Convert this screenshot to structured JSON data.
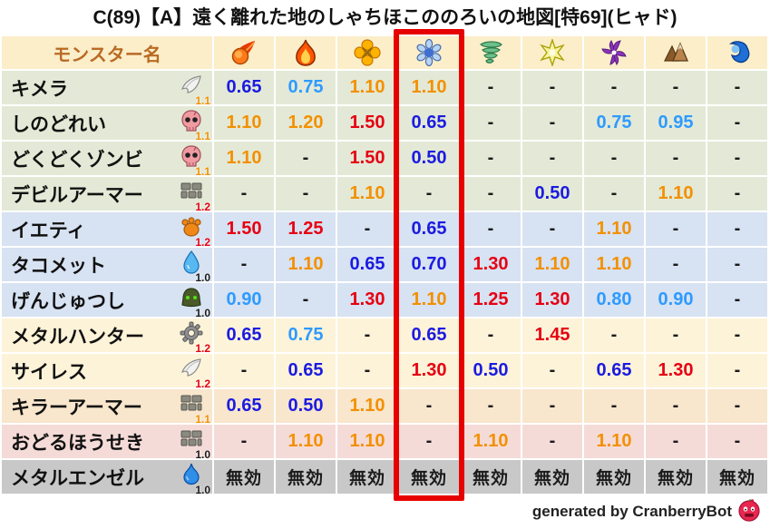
{
  "title": "C(89)【A】遠く離れた地のしゃちほこののろいの地図[特69](ヒャド)",
  "footer": {
    "credit": "generated by CranberryBot",
    "icon": "cranberry-icon"
  },
  "chart_data": {
    "type": "table",
    "title": "C(89)【A】遠く離れた地のしゃちほこののろいの地図[特69](ヒャド)",
    "name_header": "モンスター名",
    "element_icons": [
      "fireball-mera-icon",
      "flame-gira-icon",
      "explosion-io-icon",
      "snowflake-hyado-icon",
      "tornado-bagi-icon",
      "starburst-dein-icon",
      "pinwheel-dolma-icon",
      "mountain-earth-icon",
      "wave-water-icon"
    ],
    "highlighted_column_index": 3,
    "highlighted_column_icon": "snowflake-hyado-icon",
    "immune_label": "無効",
    "dash_label": "-",
    "rows": [
      {
        "monster": "キメラ",
        "family_icon": "wing-icon",
        "badge": "1.1",
        "group": "green",
        "values": [
          "0.65",
          "0.75",
          "1.10",
          "1.10",
          "-",
          "-",
          "-",
          "-",
          "-"
        ]
      },
      {
        "monster": "しのどれい",
        "family_icon": "skull-icon",
        "badge": "1.1",
        "group": "green",
        "values": [
          "1.10",
          "1.20",
          "1.50",
          "0.65",
          "-",
          "-",
          "0.75",
          "0.95",
          "-"
        ]
      },
      {
        "monster": "どくどくゾンビ",
        "family_icon": "skull-icon",
        "badge": "1.1",
        "group": "green",
        "values": [
          "1.10",
          "-",
          "1.50",
          "0.50",
          "-",
          "-",
          "-",
          "-",
          "-"
        ]
      },
      {
        "monster": "デビルアーマー",
        "family_icon": "bricks-icon",
        "badge": "1.2",
        "group": "green",
        "values": [
          "-",
          "-",
          "1.10",
          "-",
          "-",
          "0.50",
          "-",
          "1.10",
          "-"
        ]
      },
      {
        "monster": "イエティ",
        "family_icon": "paw-icon",
        "badge": "1.2",
        "group": "blue",
        "values": [
          "1.50",
          "1.25",
          "-",
          "0.65",
          "-",
          "-",
          "1.10",
          "-",
          "-"
        ]
      },
      {
        "monster": "タコメット",
        "family_icon": "waterdrop-icon",
        "badge": "1.0",
        "group": "blue",
        "values": [
          "-",
          "1.10",
          "0.65",
          "0.70",
          "1.30",
          "1.10",
          "1.10",
          "-",
          "-"
        ]
      },
      {
        "monster": "げんじゅつし",
        "family_icon": "helmet-icon",
        "badge": "1.0",
        "group": "blue",
        "values": [
          "0.90",
          "-",
          "1.30",
          "1.10",
          "1.25",
          "1.30",
          "0.80",
          "0.90",
          "-"
        ]
      },
      {
        "monster": "メタルハンター",
        "family_icon": "gear-icon",
        "badge": "1.2",
        "group": "cream",
        "values": [
          "0.65",
          "0.75",
          "-",
          "0.65",
          "-",
          "1.45",
          "-",
          "-",
          "-"
        ]
      },
      {
        "monster": "サイレス",
        "family_icon": "wing-icon",
        "badge": "1.2",
        "group": "cream",
        "values": [
          "-",
          "0.65",
          "-",
          "1.30",
          "0.50",
          "-",
          "0.65",
          "1.30",
          "-"
        ]
      },
      {
        "monster": "キラーアーマー",
        "family_icon": "bricks-icon",
        "badge": "1.1",
        "group": "peach",
        "values": [
          "0.65",
          "0.50",
          "1.10",
          "-",
          "-",
          "-",
          "-",
          "-",
          "-"
        ]
      },
      {
        "monster": "おどるほうせき",
        "family_icon": "bricks-icon",
        "badge": "1.0",
        "group": "pink",
        "values": [
          "-",
          "1.10",
          "1.10",
          "-",
          "1.10",
          "-",
          "1.10",
          "-",
          "-"
        ]
      },
      {
        "monster": "メタルエンゼル",
        "family_icon": "slime-icon",
        "badge": "1.0",
        "group": "gray",
        "values": [
          "無効",
          "無効",
          "無効",
          "無効",
          "無効",
          "無効",
          "無効",
          "無効",
          "無効"
        ]
      }
    ]
  },
  "palette": {
    "header_bg": "#fbeec9",
    "header_text": "#b96a23",
    "row_green": "#e3e9d6",
    "row_blue": "#d7e2f2",
    "row_cream": "#fdf3d8",
    "row_peach": "#f8e6cd",
    "row_pink": "#f5dbd8",
    "row_gray": "#c8c8c8",
    "value_strong_blue": "#1b1be0",
    "value_light_blue": "#2e9aff",
    "value_orange": "#f39000",
    "value_red": "#e60012",
    "value_neutral": "#1a1a1a",
    "badge_1_0": "#1a1a1a",
    "badge_1_1": "#f39000",
    "badge_1_2": "#e60012",
    "highlight_red": "#e60000"
  }
}
